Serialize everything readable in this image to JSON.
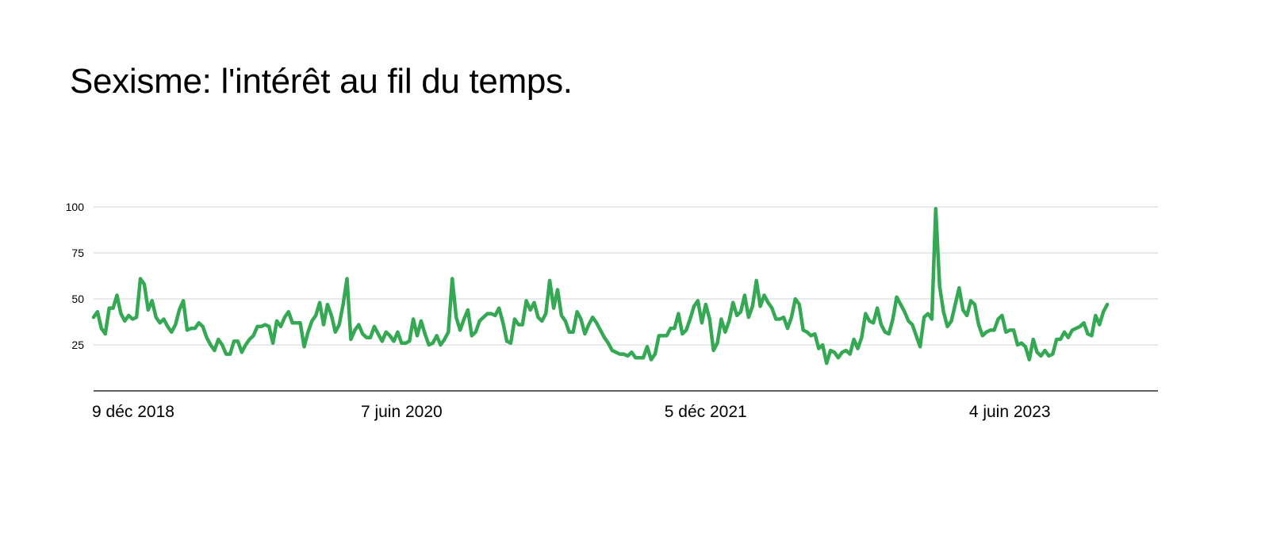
{
  "chart_data": {
    "type": "line",
    "title": "Sexisme: l'intérêt au fil du temps.",
    "xlabel": "",
    "ylabel": "",
    "ylim": [
      0,
      100
    ],
    "y_ticks": [
      25,
      50,
      75,
      100
    ],
    "grid": true,
    "line_color": "#34a853",
    "x_range": [
      "2018-12-02",
      "2024-02-25"
    ],
    "x_tick_labels": [
      {
        "date": "2018-12-09",
        "label": "9 déc 2018",
        "anchor": "start"
      },
      {
        "date": "2020-06-07",
        "label": "7 juin 2020",
        "anchor": "middle"
      },
      {
        "date": "2021-12-05",
        "label": "5 déc 2021",
        "anchor": "middle"
      },
      {
        "date": "2023-06-04",
        "label": "4 juin 2023",
        "anchor": "middle"
      }
    ],
    "series": [
      {
        "start_date": "2018-12-02",
        "interval_days": 7,
        "values": [
          40,
          43,
          34,
          31,
          45,
          45,
          52,
          42,
          38,
          41,
          39,
          40,
          61,
          58,
          44,
          49,
          40,
          37,
          39,
          35,
          32,
          36,
          44,
          49,
          33,
          34,
          34,
          37,
          35,
          29,
          25,
          22,
          28,
          25,
          20,
          20,
          27,
          27,
          21,
          25,
          28,
          30,
          35,
          35,
          36,
          35,
          26,
          38,
          35,
          40,
          43,
          37,
          37,
          37,
          24,
          32,
          38,
          41,
          48,
          36,
          47,
          41,
          32,
          36,
          47,
          61,
          28,
          33,
          36,
          31,
          29,
          29,
          35,
          31,
          27,
          32,
          30,
          27,
          32,
          26,
          26,
          27,
          39,
          30,
          38,
          31,
          25,
          26,
          30,
          25,
          28,
          32,
          61,
          40,
          33,
          39,
          44,
          30,
          32,
          38,
          40,
          42,
          42,
          41,
          45,
          37,
          27,
          26,
          39,
          36,
          36,
          49,
          44,
          48,
          40,
          38,
          42,
          60,
          45,
          55,
          41,
          38,
          32,
          32,
          43,
          39,
          31,
          36,
          40,
          37,
          33,
          29,
          26,
          22,
          21,
          20,
          20,
          19,
          21,
          18,
          18,
          18,
          24,
          17,
          20,
          30,
          30,
          30,
          34,
          34,
          42,
          31,
          33,
          39,
          46,
          49,
          37,
          47,
          39,
          22,
          26,
          39,
          32,
          38,
          48,
          41,
          43,
          52,
          40,
          46,
          60,
          46,
          52,
          48,
          45,
          39,
          39,
          40,
          34,
          40,
          50,
          47,
          33,
          32,
          30,
          31,
          23,
          25,
          15,
          22,
          21,
          18,
          21,
          22,
          20,
          28,
          23,
          29,
          42,
          38,
          37,
          45,
          36,
          32,
          31,
          39,
          51,
          47,
          43,
          38,
          36,
          30,
          24,
          40,
          42,
          39,
          99,
          57,
          43,
          35,
          38,
          47,
          56,
          44,
          41,
          49,
          47,
          36,
          30,
          32,
          33,
          33,
          39,
          41,
          32,
          33,
          33,
          25,
          26,
          24,
          17,
          28,
          21,
          19,
          22,
          19,
          20,
          28,
          28,
          32,
          29,
          33,
          34,
          35,
          37,
          31,
          30,
          41,
          36,
          43,
          47
        ]
      }
    ]
  }
}
